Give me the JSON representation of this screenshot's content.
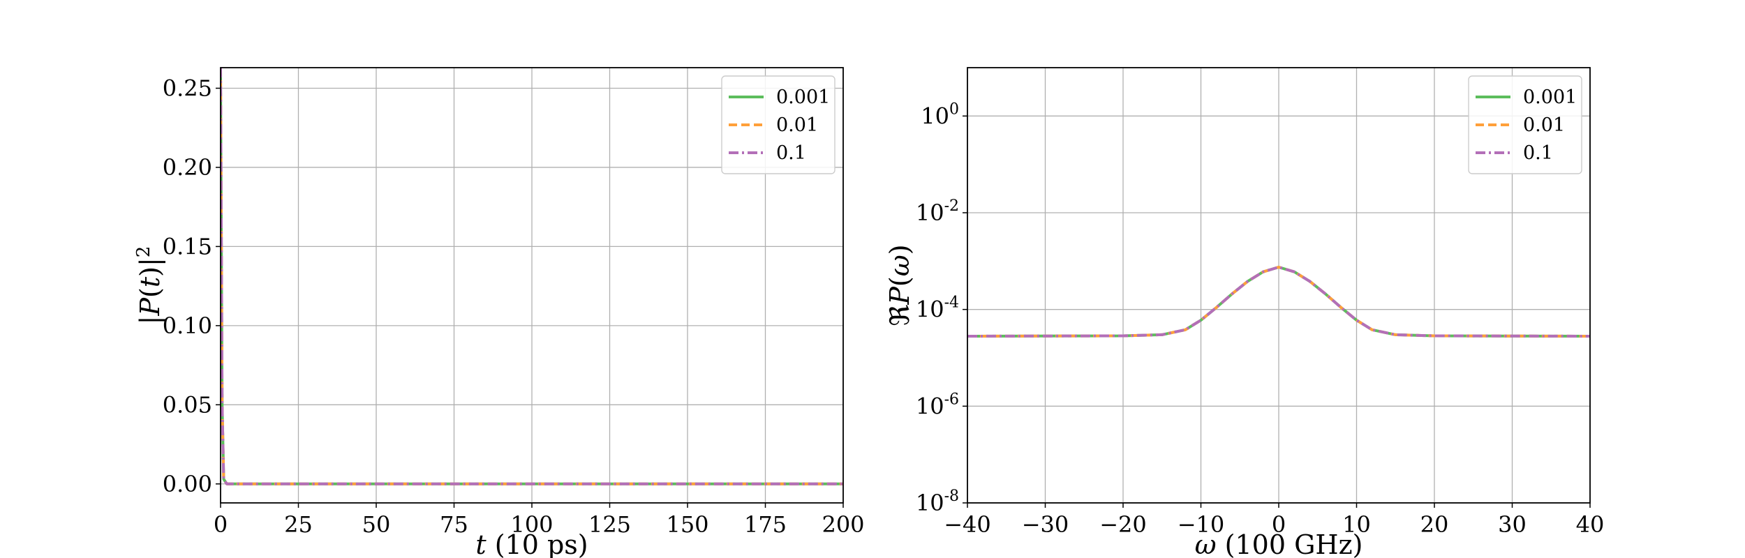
{
  "chart_data": [
    {
      "type": "line",
      "xlabel_var": "t",
      "xlabel_unit": " (10 ps)",
      "ylabel_parts": [
        "|",
        "P",
        "(",
        "t",
        ")|",
        "2"
      ],
      "xlim": [
        0,
        200
      ],
      "ylim": [
        -0.012,
        0.263
      ],
      "xticks": [
        0,
        25,
        50,
        75,
        100,
        125,
        150,
        175,
        200
      ],
      "xtick_labels": [
        "0",
        "25",
        "50",
        "75",
        "100",
        "125",
        "150",
        "175",
        "200"
      ],
      "yticks": [
        0.0,
        0.05,
        0.1,
        0.15,
        0.2,
        0.25
      ],
      "ytick_labels": [
        "0.00",
        "0.05",
        "0.10",
        "0.15",
        "0.20",
        "0.25"
      ],
      "grid": true,
      "legend_position": "top-right",
      "series": [
        {
          "name": "0.001",
          "color": "#5cbd5c",
          "dash": "solid",
          "x": [
            0,
            0.05,
            0.5,
            1,
            2,
            200
          ],
          "y": [
            0.263,
            0.24,
            0.05,
            0.003,
            0.0,
            0.0
          ]
        },
        {
          "name": "0.01",
          "color": "#ffa03a",
          "dash": "dashed",
          "x": [
            0,
            0.05,
            0.5,
            1,
            2,
            200
          ],
          "y": [
            0.263,
            0.24,
            0.05,
            0.003,
            0.0,
            0.0
          ]
        },
        {
          "name": "0.1",
          "color": "#b36fb8",
          "dash": "dashdot",
          "x": [
            0,
            0.05,
            0.5,
            1,
            2,
            200
          ],
          "y": [
            0.263,
            0.24,
            0.05,
            0.003,
            0.0,
            0.0
          ]
        }
      ]
    },
    {
      "type": "line",
      "yscale": "log",
      "xlabel_var": "ω",
      "xlabel_unit": " (100 GHz)",
      "ylabel_parts": [
        "ℜ",
        "P",
        "(",
        "ω",
        ")"
      ],
      "xlim": [
        -40,
        40
      ],
      "ylim": [
        1e-08,
        10
      ],
      "xticks": [
        -40,
        -30,
        -20,
        -10,
        0,
        10,
        20,
        30,
        40
      ],
      "xtick_labels": [
        "−40",
        "−30",
        "−20",
        "−10",
        "0",
        "10",
        "20",
        "30",
        "40"
      ],
      "yticks": [
        1e-08,
        1e-06,
        0.0001,
        0.01,
        1
      ],
      "ytick_bases": [
        "10",
        "10",
        "10",
        "10",
        "10"
      ],
      "ytick_exps": [
        "-8",
        "-6",
        "-4",
        "-2",
        "0"
      ],
      "grid": true,
      "legend_position": "top-right",
      "series": [
        {
          "name": "0.001",
          "color": "#5cbd5c",
          "dash": "solid",
          "x": [
            -40,
            -20,
            -15,
            -12,
            -10,
            -8,
            -6,
            -4,
            -2,
            0,
            2,
            4,
            6,
            8,
            10,
            12,
            15,
            20,
            40
          ],
          "y": [
            2.8e-05,
            2.85e-05,
            3e-05,
            3.8e-05,
            6e-05,
            0.00011,
            0.00021,
            0.00038,
            0.0006,
            0.00075,
            0.0006,
            0.00038,
            0.00021,
            0.00011,
            6e-05,
            3.8e-05,
            3e-05,
            2.85e-05,
            2.8e-05
          ]
        },
        {
          "name": "0.01",
          "color": "#ffa03a",
          "dash": "dashed",
          "x": [
            -40,
            -20,
            -15,
            -12,
            -10,
            -8,
            -6,
            -4,
            -2,
            0,
            2,
            4,
            6,
            8,
            10,
            12,
            15,
            20,
            40
          ],
          "y": [
            2.8e-05,
            2.85e-05,
            3e-05,
            3.8e-05,
            6e-05,
            0.00011,
            0.00021,
            0.00038,
            0.0006,
            0.00075,
            0.0006,
            0.00038,
            0.00021,
            0.00011,
            6e-05,
            3.8e-05,
            3e-05,
            2.85e-05,
            2.8e-05
          ]
        },
        {
          "name": "0.1",
          "color": "#b36fb8",
          "dash": "dashdot",
          "x": [
            -40,
            -20,
            -15,
            -12,
            -10,
            -8,
            -6,
            -4,
            -2,
            0,
            2,
            4,
            6,
            8,
            10,
            12,
            15,
            20,
            40
          ],
          "y": [
            2.8e-05,
            2.85e-05,
            3e-05,
            3.8e-05,
            6e-05,
            0.00011,
            0.00021,
            0.00038,
            0.0006,
            0.00075,
            0.0006,
            0.00038,
            0.00021,
            0.00011,
            6e-05,
            3.8e-05,
            3e-05,
            2.85e-05,
            2.8e-05
          ]
        }
      ]
    }
  ]
}
